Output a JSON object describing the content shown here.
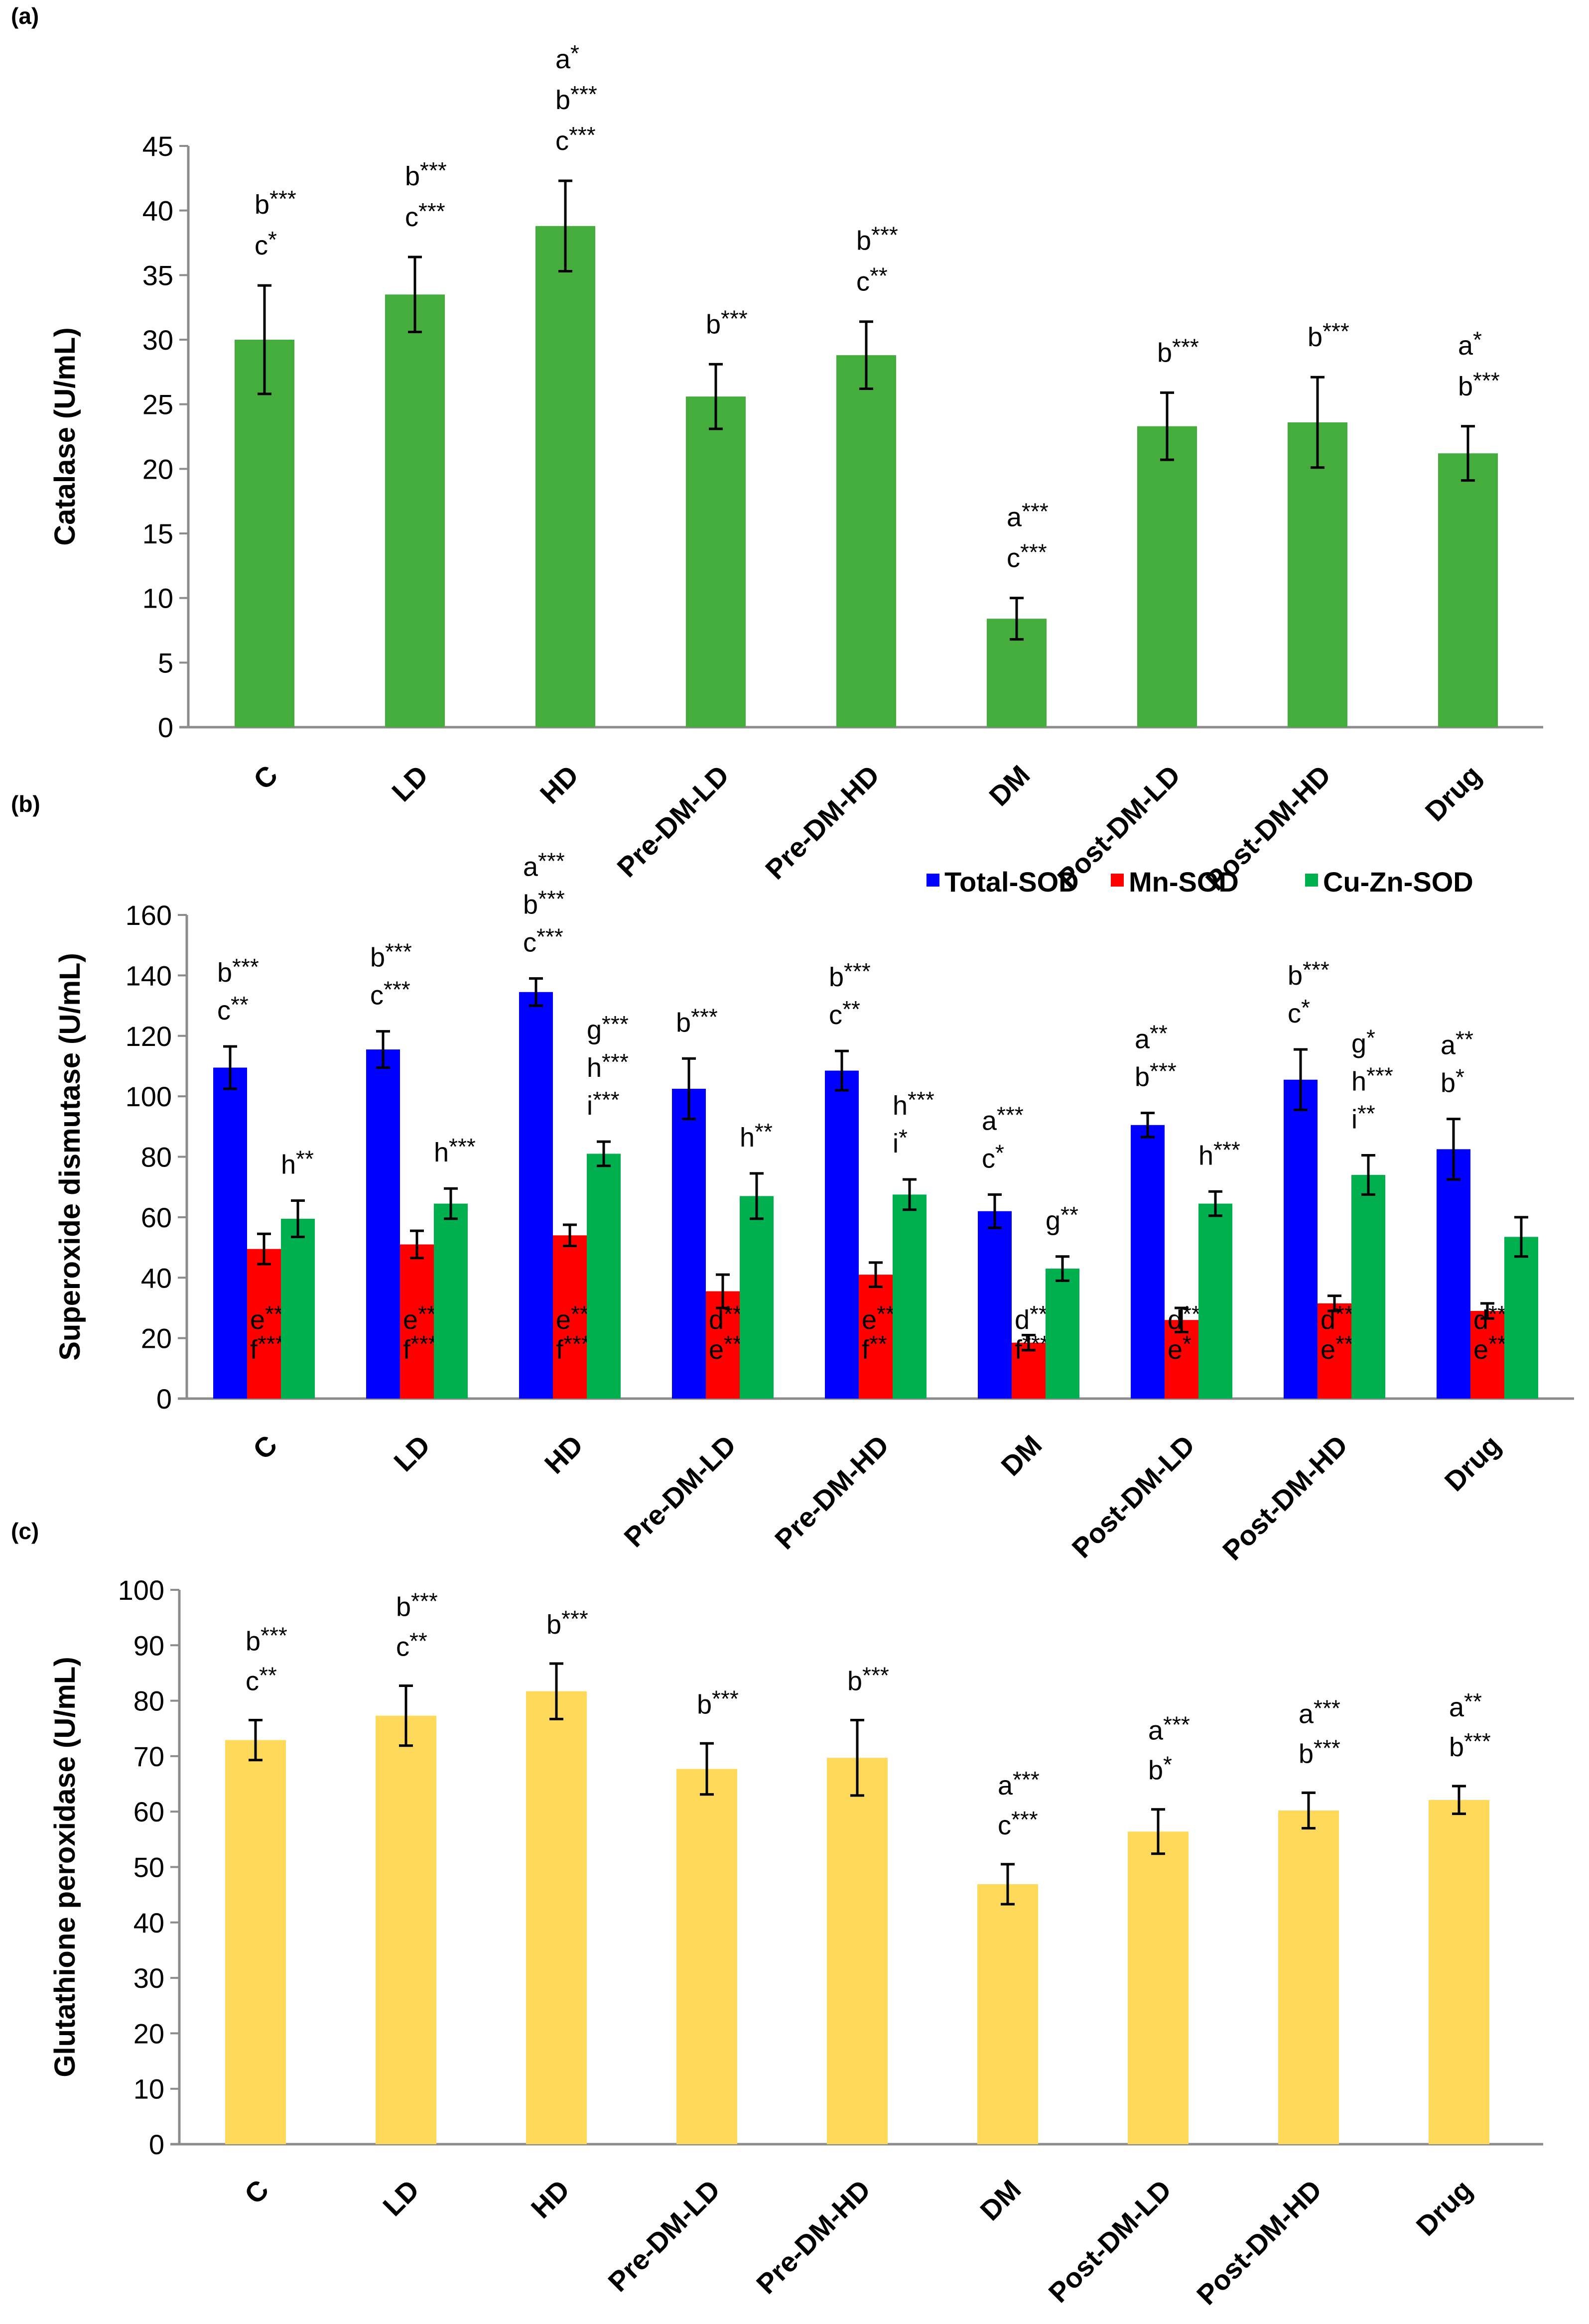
{
  "chart_data": [
    {
      "panel": "(a)",
      "type": "bar",
      "title": "",
      "xlabel": "",
      "ylabel": "Catalase (U/mL)",
      "ylim": [
        0,
        45
      ],
      "yticks": [
        0,
        5,
        10,
        15,
        20,
        25,
        30,
        35,
        40,
        45
      ],
      "grid": false,
      "color": "#45ad3c",
      "categories": [
        "C",
        "LD",
        "HD",
        "Pre-DM-LD",
        "Pre-DM-HD",
        "DM",
        "Post-DM-LD",
        "Post-DM-HD",
        "Drug"
      ],
      "values": [
        30.0,
        33.5,
        38.8,
        25.6,
        28.8,
        8.4,
        23.3,
        23.6,
        21.2
      ],
      "errors": [
        4.2,
        2.9,
        3.5,
        2.5,
        2.6,
        1.6,
        2.6,
        3.5,
        2.1
      ],
      "annotations": [
        [
          "b***",
          "c*"
        ],
        [
          "b***",
          "c***"
        ],
        [
          "a*",
          "b***",
          "c***"
        ],
        [
          "b***"
        ],
        [
          "b***",
          "c**"
        ],
        [
          "a***",
          "c***"
        ],
        [
          "b***"
        ],
        [
          "b***"
        ],
        [
          "a*",
          "b***"
        ]
      ]
    },
    {
      "panel": "(b)",
      "type": "bar",
      "title": "",
      "xlabel": "",
      "ylabel": "Superoxide dismutase (U/mL)",
      "ylim": [
        0,
        160
      ],
      "yticks": [
        0,
        20,
        40,
        60,
        80,
        100,
        120,
        140,
        160
      ],
      "grid": false,
      "legend_position": "top-right",
      "categories": [
        "C",
        "LD",
        "HD",
        "Pre-DM-LD",
        "Pre-DM-HD",
        "DM",
        "Post-DM-LD",
        "Post-DM-HD",
        "Drug"
      ],
      "series": [
        {
          "name": "Total-SOD",
          "color": "#0000ff",
          "values": [
            109.5,
            115.5,
            134.5,
            102.5,
            108.5,
            62.0,
            90.5,
            105.5,
            82.5
          ],
          "errors": [
            7.0,
            6.0,
            4.5,
            10.0,
            6.5,
            5.5,
            4.0,
            10.0,
            10.0
          ],
          "annotations": [
            [
              "b***",
              "c**"
            ],
            [
              "b***",
              "c***"
            ],
            [
              "a***",
              "b***",
              "c***"
            ],
            [
              "b***"
            ],
            [
              "b***",
              "c**"
            ],
            [
              "a***",
              "c*"
            ],
            [
              "a**",
              "b***"
            ],
            [
              "b***",
              "c*"
            ],
            [
              "a**",
              "b*"
            ]
          ]
        },
        {
          "name": "Mn-SOD",
          "color": "#ff0000",
          "values": [
            49.5,
            51.0,
            54.0,
            35.5,
            41.0,
            18.5,
            26.0,
            31.5,
            29.0
          ],
          "errors": [
            5.0,
            4.5,
            3.5,
            5.5,
            4.0,
            2.5,
            4.0,
            2.5,
            2.5
          ],
          "annotations": [
            [
              "e***",
              "f***"
            ],
            [
              "e***",
              "f***"
            ],
            [
              "e***",
              "f***"
            ],
            [
              "d**",
              "e**"
            ],
            [
              "e***",
              "f**"
            ],
            [
              "d***",
              "f***"
            ],
            [
              "d***",
              "e*"
            ],
            [
              "d***",
              "e***"
            ],
            [
              "d***",
              "e***"
            ]
          ]
        },
        {
          "name": "Cu-Zn-SOD",
          "color": "#00b04f",
          "values": [
            59.5,
            64.5,
            81.0,
            67.0,
            67.5,
            43.0,
            64.5,
            74.0,
            53.5
          ],
          "errors": [
            6.0,
            5.0,
            4.0,
            7.5,
            5.0,
            4.0,
            4.0,
            6.5,
            6.5
          ],
          "annotations": [
            [
              "h**"
            ],
            [
              "h***"
            ],
            [
              "g***",
              "h***",
              "i***"
            ],
            [
              "h**"
            ],
            [
              "h***",
              "i*"
            ],
            [
              "g**"
            ],
            [
              "h***"
            ],
            [
              "g*",
              "h***",
              "i**"
            ],
            []
          ]
        }
      ]
    },
    {
      "panel": "(c)",
      "type": "bar",
      "title": "",
      "xlabel": "",
      "ylabel": "Glutathione peroxidase (U/mL)",
      "ylim": [
        0,
        100
      ],
      "yticks": [
        0,
        10,
        20,
        30,
        40,
        50,
        60,
        70,
        80,
        90,
        100
      ],
      "grid": false,
      "color": "#ffd95a",
      "categories": [
        "C",
        "LD",
        "HD",
        "Pre-DM-LD",
        "Pre-DM-HD",
        "DM",
        "Post-DM-LD",
        "Post-DM-HD",
        "Drug"
      ],
      "values": [
        72.9,
        77.3,
        81.7,
        67.7,
        69.7,
        46.9,
        56.4,
        60.2,
        62.1
      ],
      "errors": [
        3.6,
        5.4,
        5.0,
        4.6,
        6.8,
        3.6,
        4.0,
        3.2,
        2.5
      ],
      "annotations": [
        [
          "b***",
          "c**"
        ],
        [
          "b***",
          "c**"
        ],
        [
          "b***"
        ],
        [
          "b***"
        ],
        [
          "b***"
        ],
        [
          "a***",
          "c***"
        ],
        [
          "a***",
          "b*"
        ],
        [
          "a***",
          "b***"
        ],
        [
          "a**",
          "b***"
        ]
      ]
    }
  ]
}
